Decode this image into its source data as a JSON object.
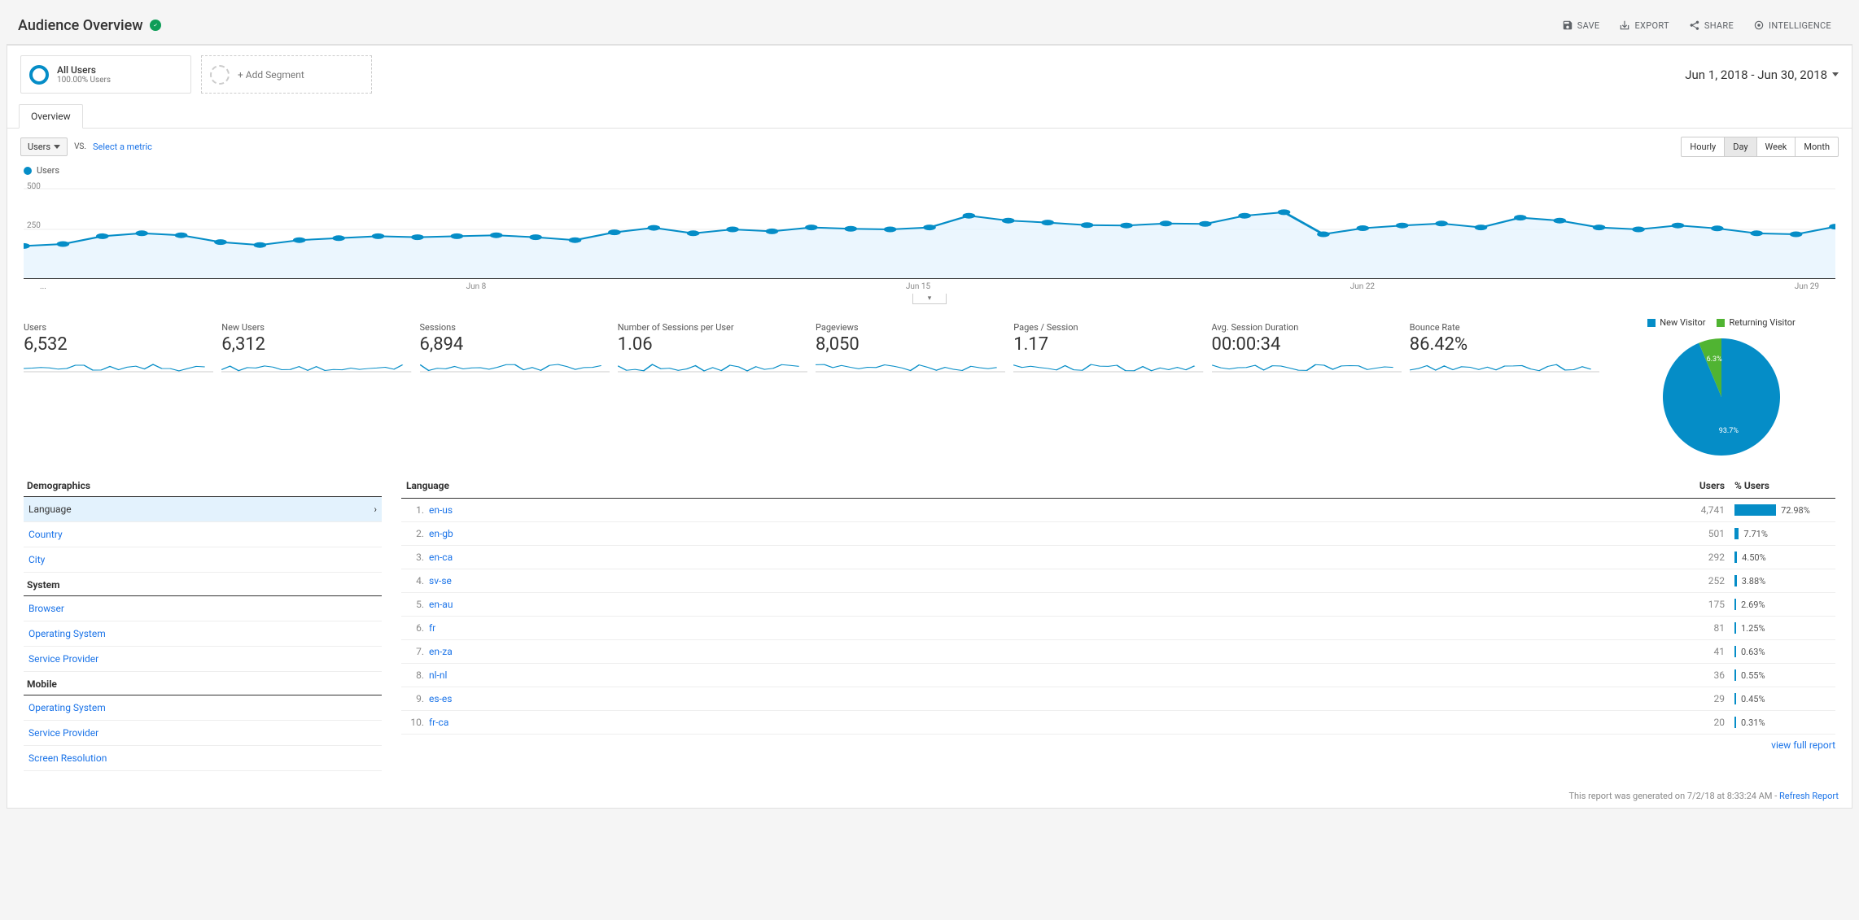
{
  "header": {
    "title": "Audience Overview",
    "toolbar": {
      "save": "SAVE",
      "export": "EXPORT",
      "share": "SHARE",
      "intelligence": "INTELLIGENCE"
    }
  },
  "segments": {
    "all_users": {
      "title": "All Users",
      "sub": "100.00% Users"
    },
    "add": "+ Add Segment"
  },
  "date_range": "Jun 1, 2018 - Jun 30, 2018",
  "tab": "Overview",
  "chart_controls": {
    "metric": "Users",
    "vs": "VS.",
    "select_metric": "Select a metric",
    "granularity": [
      "Hourly",
      "Day",
      "Week",
      "Month"
    ],
    "granularity_active": "Day"
  },
  "chart": {
    "legend": "Users",
    "yticks": [
      "500",
      "250"
    ],
    "xlabels": [
      "...",
      "Jun 8",
      "Jun 15",
      "Jun 22",
      "Jun 29"
    ],
    "line_color": "#058dc7",
    "fill_color": "#e3f2fd",
    "values": [
      165,
      175,
      215,
      230,
      220,
      185,
      170,
      195,
      205,
      215,
      210,
      215,
      220,
      210,
      195,
      235,
      258,
      230,
      250,
      240,
      260,
      253,
      250,
      260,
      320,
      295,
      285,
      272,
      270,
      280,
      278,
      320,
      338,
      225,
      256,
      270,
      280,
      260,
      310,
      295,
      260,
      250,
      270,
      255,
      230,
      225,
      264
    ]
  },
  "metrics": [
    {
      "label": "Users",
      "value": "6,532"
    },
    {
      "label": "New Users",
      "value": "6,312"
    },
    {
      "label": "Sessions",
      "value": "6,894"
    },
    {
      "label": "Number of Sessions per User",
      "value": "1.06"
    },
    {
      "label": "Pageviews",
      "value": "8,050"
    },
    {
      "label": "Pages / Session",
      "value": "1.17"
    },
    {
      "label": "Avg. Session Duration",
      "value": "00:00:34"
    },
    {
      "label": "Bounce Rate",
      "value": "86.42%"
    }
  ],
  "pie": {
    "legend": [
      {
        "label": "New Visitor",
        "color": "#058dc7"
      },
      {
        "label": "Returning Visitor",
        "color": "#50b432"
      }
    ],
    "slices": [
      {
        "pct": 93.7,
        "label": "93.7%",
        "color": "#058dc7"
      },
      {
        "pct": 6.3,
        "label": "6.3%",
        "color": "#50b432"
      }
    ]
  },
  "nav": {
    "sections": [
      {
        "title": "Demographics",
        "items": [
          "Language",
          "Country",
          "City"
        ],
        "active": "Language"
      },
      {
        "title": "System",
        "items": [
          "Browser",
          "Operating System",
          "Service Provider"
        ]
      },
      {
        "title": "Mobile",
        "items": [
          "Operating System",
          "Service Provider",
          "Screen Resolution"
        ]
      }
    ]
  },
  "table": {
    "col_headers": [
      "Language",
      "Users",
      "% Users"
    ],
    "rows": [
      {
        "rank": "1.",
        "lang": "en-us",
        "users": "4,741",
        "pct": 72.98
      },
      {
        "rank": "2.",
        "lang": "en-gb",
        "users": "501",
        "pct": 7.71
      },
      {
        "rank": "3.",
        "lang": "en-ca",
        "users": "292",
        "pct": 4.5
      },
      {
        "rank": "4.",
        "lang": "sv-se",
        "users": "252",
        "pct": 3.88
      },
      {
        "rank": "5.",
        "lang": "en-au",
        "users": "175",
        "pct": 2.69
      },
      {
        "rank": "6.",
        "lang": "fr",
        "users": "81",
        "pct": 1.25
      },
      {
        "rank": "7.",
        "lang": "en-za",
        "users": "41",
        "pct": 0.63
      },
      {
        "rank": "8.",
        "lang": "nl-nl",
        "users": "36",
        "pct": 0.55
      },
      {
        "rank": "9.",
        "lang": "es-es",
        "users": "29",
        "pct": 0.45
      },
      {
        "rank": "10.",
        "lang": "fr-ca",
        "users": "20",
        "pct": 0.31
      }
    ],
    "bar_color": "#058dc7",
    "view_full": "view full report"
  },
  "footer": {
    "text": "This report was generated on 7/2/18 at 8:33:24 AM - ",
    "refresh": "Refresh Report"
  }
}
